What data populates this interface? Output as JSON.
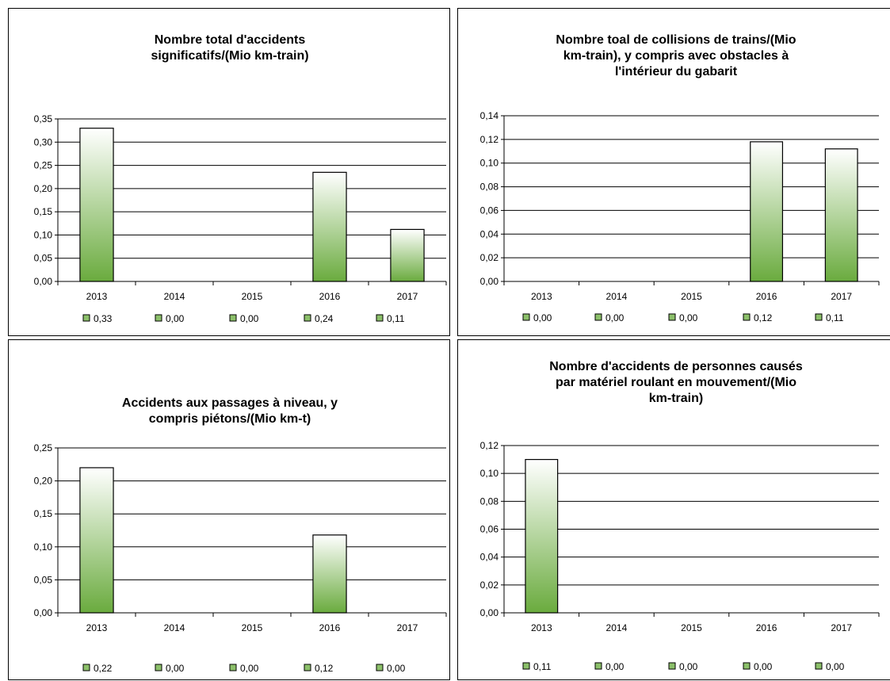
{
  "colors": {
    "bar_top": "#ffffff",
    "bar_bottom": "#6aab3e",
    "bar_outline": "#000000",
    "legend_marker_fill": "#8cc06a",
    "legend_marker_stroke": "#000000"
  },
  "chart_data": [
    {
      "type": "bar",
      "title": [
        "Nombre total  d'accidents",
        "significatifs/(Mio km-train)"
      ],
      "categories": [
        "2013",
        "2014",
        "2015",
        "2016",
        "2017"
      ],
      "values": [
        0.33,
        0.0,
        0.0,
        0.235,
        0.112
      ],
      "ylim": [
        0,
        0.35
      ],
      "yticks": [
        "0,00",
        "0,05",
        "0,10",
        "0,15",
        "0,20",
        "0,25",
        "0,30",
        "0,35"
      ],
      "legend": [
        "0,33",
        "0,00",
        "0,00",
        "0,24",
        "0,11"
      ],
      "grid": true,
      "legend_position": "bottom"
    },
    {
      "type": "bar",
      "title": [
        "Nombre toal de collisions de trains/(Mio",
        "km-train), y compris avec obstacles à",
        "l'intérieur du gabarit"
      ],
      "categories": [
        "2013",
        "2014",
        "2015",
        "2016",
        "2017"
      ],
      "values": [
        0.0,
        0.0,
        0.0,
        0.118,
        0.112
      ],
      "ylim": [
        0,
        0.14
      ],
      "yticks": [
        "0,00",
        "0,02",
        "0,04",
        "0,06",
        "0,08",
        "0,10",
        "0,12",
        "0,14"
      ],
      "legend": [
        "0,00",
        "0,00",
        "0,00",
        "0,12",
        "0,11"
      ],
      "grid": true,
      "legend_position": "bottom"
    },
    {
      "type": "bar",
      "title": [
        "Accidents aux passages à niveau, y",
        "compris piétons/(Mio km-t)"
      ],
      "categories": [
        "2013",
        "2014",
        "2015",
        "2016",
        "2017"
      ],
      "values": [
        0.22,
        0.0,
        0.0,
        0.118,
        0.0
      ],
      "ylim": [
        0,
        0.25
      ],
      "yticks": [
        "0,00",
        "0,05",
        "0,10",
        "0,15",
        "0,20",
        "0,25"
      ],
      "legend": [
        "0,22",
        "0,00",
        "0,00",
        "0,12",
        "0,00"
      ],
      "grid": true,
      "legend_position": "bottom"
    },
    {
      "type": "bar",
      "title": [
        "Nombre d'accidents de personnes causés",
        "par matériel roulant en mouvement/(Mio",
        "km-train)"
      ],
      "categories": [
        "2013",
        "2014",
        "2015",
        "2016",
        "2017"
      ],
      "values": [
        0.11,
        0.0,
        0.0,
        0.0,
        0.0
      ],
      "ylim": [
        0,
        0.12
      ],
      "yticks": [
        "0,00",
        "0,02",
        "0,04",
        "0,06",
        "0,08",
        "0,10",
        "0,12"
      ],
      "legend": [
        "0,11",
        "0,00",
        "0,00",
        "0,00",
        "0,00"
      ],
      "grid": true,
      "legend_position": "bottom"
    }
  ]
}
